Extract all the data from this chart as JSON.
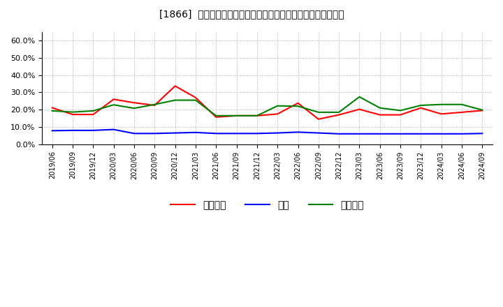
{
  "title": "[1866]  売上債権、在庫、買入債務の総資産に対する比率の推移",
  "dates": [
    "2019/06",
    "2019/09",
    "2019/12",
    "2020/03",
    "2020/06",
    "2020/09",
    "2020/12",
    "2021/03",
    "2021/06",
    "2021/09",
    "2021/12",
    "2022/03",
    "2022/06",
    "2022/09",
    "2022/12",
    "2023/03",
    "2023/06",
    "2023/09",
    "2023/12",
    "2024/03",
    "2024/06",
    "2024/09"
  ],
  "urikake": [
    0.211,
    0.172,
    0.172,
    0.26,
    0.24,
    0.225,
    0.337,
    0.27,
    0.157,
    0.165,
    0.165,
    0.175,
    0.238,
    0.145,
    0.17,
    0.202,
    0.17,
    0.17,
    0.21,
    0.175,
    0.185,
    0.195
  ],
  "zaiko": [
    0.078,
    0.08,
    0.08,
    0.085,
    0.062,
    0.062,
    0.065,
    0.068,
    0.062,
    0.062,
    0.062,
    0.065,
    0.07,
    0.065,
    0.06,
    0.06,
    0.06,
    0.06,
    0.06,
    0.06,
    0.06,
    0.062
  ],
  "kaiire": [
    0.193,
    0.186,
    0.193,
    0.228,
    0.208,
    0.23,
    0.255,
    0.255,
    0.165,
    0.165,
    0.165,
    0.222,
    0.22,
    0.185,
    0.185,
    0.274,
    0.21,
    0.195,
    0.225,
    0.23,
    0.23,
    0.198
  ],
  "urikake_color": "#ff0000",
  "zaiko_color": "#0000ff",
  "kaiire_color": "#008000",
  "ylim": [
    0.0,
    0.65
  ],
  "yticks": [
    0.0,
    0.1,
    0.2,
    0.3,
    0.4,
    0.5,
    0.6
  ],
  "background_color": "#ffffff",
  "grid_color": "#aaaaaa",
  "legend_urikake": "売上債権",
  "legend_zaiko": "在庫",
  "legend_kaiire": "買入債務"
}
